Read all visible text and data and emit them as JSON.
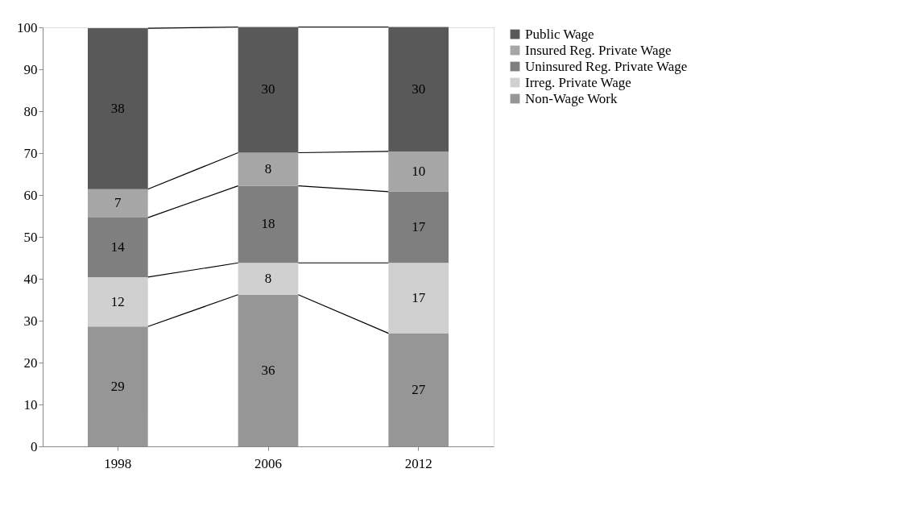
{
  "chart_data": {
    "type": "bar",
    "stacked": true,
    "categories": [
      "1998",
      "2006",
      "2012"
    ],
    "series": [
      {
        "name": "Non-Wage Work",
        "color": "#969696",
        "values": [
          28.6,
          36.2,
          27
        ],
        "value_labels": [
          "29",
          "36",
          "27"
        ]
      },
      {
        "name": "Irreg. Private Wage",
        "color": "#d0d0d0",
        "values": [
          11.8,
          7.6,
          16.8
        ],
        "value_labels": [
          "12",
          "8",
          "17"
        ]
      },
      {
        "name": "Uninsured Reg. Private Wage",
        "color": "#7f7f7f",
        "values": [
          14.2,
          18.4,
          17
        ],
        "value_labels": [
          "14",
          "18",
          "17"
        ]
      },
      {
        "name": "Insured Reg. Private Wage",
        "color": "#a6a6a6",
        "values": [
          6.8,
          7.9,
          9.6
        ],
        "value_labels": [
          "7",
          "8",
          "10"
        ]
      },
      {
        "name": "Public Wage",
        "color": "#595959",
        "values": [
          38.4,
          30,
          29.7
        ],
        "value_labels": [
          "38",
          "30",
          "30"
        ]
      }
    ],
    "ylim": [
      0,
      100
    ],
    "yticks": [
      0,
      10,
      20,
      30,
      40,
      50,
      60,
      70,
      80,
      90,
      100
    ],
    "grid": false,
    "legend": "right"
  }
}
